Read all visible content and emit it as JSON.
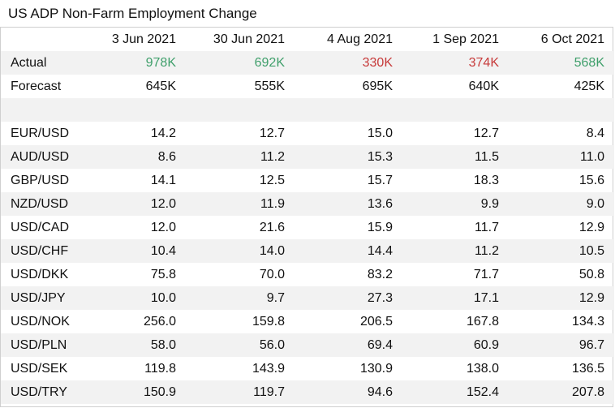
{
  "title": "US ADP Non-Farm Employment Change",
  "colors": {
    "positive": "#3f9f6b",
    "negative": "#c73a3a",
    "shade": "#f2f2f2"
  },
  "headers": [
    "3 Jun 2021",
    "30 Jun 2021",
    "4 Aug 2021",
    "1 Sep 2021",
    "6 Oct 2021"
  ],
  "actual": {
    "label": "Actual",
    "values": [
      "978K",
      "692K",
      "330K",
      "374K",
      "568K"
    ],
    "status": [
      "positive",
      "positive",
      "negative",
      "negative",
      "positive"
    ]
  },
  "forecast": {
    "label": "Forecast",
    "values": [
      "645K",
      "555K",
      "695K",
      "640K",
      "425K"
    ]
  },
  "pairs": [
    {
      "label": "EUR/USD",
      "values": [
        "14.2",
        "12.7",
        "15.0",
        "12.7",
        "8.4"
      ]
    },
    {
      "label": "AUD/USD",
      "values": [
        "8.6",
        "11.2",
        "15.3",
        "11.5",
        "11.0"
      ]
    },
    {
      "label": "GBP/USD",
      "values": [
        "14.1",
        "12.5",
        "15.7",
        "18.3",
        "15.6"
      ]
    },
    {
      "label": "NZD/USD",
      "values": [
        "12.0",
        "11.9",
        "13.6",
        "9.9",
        "9.0"
      ]
    },
    {
      "label": "USD/CAD",
      "values": [
        "12.0",
        "21.6",
        "15.9",
        "11.7",
        "12.9"
      ]
    },
    {
      "label": "USD/CHF",
      "values": [
        "10.4",
        "14.0",
        "14.4",
        "11.2",
        "10.5"
      ]
    },
    {
      "label": "USD/DKK",
      "values": [
        "75.8",
        "70.0",
        "83.2",
        "71.7",
        "50.8"
      ]
    },
    {
      "label": "USD/JPY",
      "values": [
        "10.0",
        "9.7",
        "27.3",
        "17.1",
        "12.9"
      ]
    },
    {
      "label": "USD/NOK",
      "values": [
        "256.0",
        "159.8",
        "206.5",
        "167.8",
        "134.3"
      ]
    },
    {
      "label": "USD/PLN",
      "values": [
        "58.0",
        "56.0",
        "69.4",
        "60.9",
        "96.7"
      ]
    },
    {
      "label": "USD/SEK",
      "values": [
        "119.8",
        "143.9",
        "130.9",
        "138.0",
        "136.5"
      ]
    },
    {
      "label": "USD/TRY",
      "values": [
        "150.9",
        "119.7",
        "94.6",
        "152.4",
        "207.8"
      ]
    }
  ]
}
